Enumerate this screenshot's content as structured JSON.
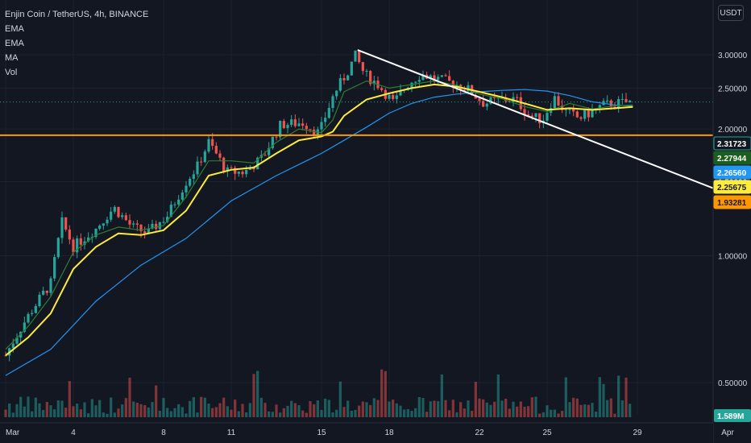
{
  "header": {
    "symbol": "Enjin Coin / TetherUS, 4h, BINANCE",
    "indicators": [
      "EMA",
      "EMA",
      "MA",
      "Vol"
    ]
  },
  "currency_label": "USDT",
  "chart_data": {
    "type": "candlestick",
    "title": "Enjin Coin / TetherUS, 4h, BINANCE",
    "y_axis": {
      "scale": "log",
      "ticks": [
        3.0,
        2.5,
        2.0,
        1.5,
        1.0,
        0.5
      ],
      "tick_labels": [
        "3.00000",
        "2.50000",
        "2.00000",
        "1.50000",
        "1.00000",
        "0.50000"
      ]
    },
    "x_axis": {
      "ticks": [
        "Mar",
        "4",
        "8",
        "11",
        "15",
        "18",
        "22",
        "25",
        "29",
        "Apr"
      ]
    },
    "price_labels": [
      {
        "value": 2.31723,
        "text": "2.31723",
        "bg": "#131722",
        "border": "#26a69a",
        "fg": "#ffffff"
      },
      {
        "value": 2.27944,
        "text": "2.27944",
        "bg": "#1b5e20",
        "border": "#1b5e20",
        "fg": "#ffffff"
      },
      {
        "value": 2.2656,
        "text": "2.26560",
        "bg": "#2196f3",
        "border": "#2196f3",
        "fg": "#ffffff"
      },
      {
        "value": 2.25675,
        "text": "2.25675",
        "bg": "#ffeb3b",
        "border": "#ffeb3b",
        "fg": "#131722"
      },
      {
        "value": 1.93281,
        "text": "1.93281",
        "bg": "#ff9800",
        "border": "#ff9800",
        "fg": "#131722"
      }
    ],
    "volume_label": "1.589M",
    "horizontal_line": {
      "value": 1.93281,
      "color": "#ff9800"
    },
    "trendline": {
      "from": {
        "day": 15.6,
        "price": 3.08
      },
      "to": {
        "day": 31.6,
        "price": 1.43
      },
      "color": "#ffffff"
    },
    "price_path": [
      [
        0.0,
        0.58
      ],
      [
        1.0,
        0.72
      ],
      [
        2.0,
        0.86
      ],
      [
        2.5,
        1.2
      ],
      [
        3.0,
        1.05
      ],
      [
        4.0,
        1.16
      ],
      [
        4.8,
        1.3
      ],
      [
        5.6,
        1.17
      ],
      [
        6.3,
        1.13
      ],
      [
        7.2,
        1.25
      ],
      [
        8.0,
        1.5
      ],
      [
        8.5,
        1.63
      ],
      [
        9.0,
        1.86
      ],
      [
        9.8,
        1.58
      ],
      [
        10.6,
        1.58
      ],
      [
        11.4,
        1.71
      ],
      [
        12.2,
        2.05
      ],
      [
        13.2,
        2.07
      ],
      [
        13.9,
        1.95
      ],
      [
        14.6,
        2.45
      ],
      [
        15.1,
        2.7
      ],
      [
        15.5,
        2.98
      ],
      [
        15.9,
        2.7
      ],
      [
        16.5,
        2.55
      ],
      [
        17.2,
        2.3
      ],
      [
        17.8,
        2.55
      ],
      [
        18.4,
        2.7
      ],
      [
        19.2,
        2.62
      ],
      [
        20.0,
        2.55
      ],
      [
        20.5,
        2.48
      ],
      [
        21.2,
        2.3
      ],
      [
        22.0,
        2.35
      ],
      [
        22.6,
        2.35
      ],
      [
        23.2,
        2.15
      ],
      [
        23.8,
        2.1
      ],
      [
        24.3,
        2.38
      ],
      [
        24.8,
        2.2
      ],
      [
        25.4,
        2.12
      ],
      [
        26.0,
        2.2
      ],
      [
        26.5,
        2.28
      ],
      [
        27.0,
        2.3
      ],
      [
        27.8,
        2.31723
      ]
    ],
    "ema_fast": [
      [
        0.0,
        0.6
      ],
      [
        1.0,
        0.68
      ],
      [
        2.0,
        0.8
      ],
      [
        3.0,
        1.02
      ],
      [
        4.0,
        1.12
      ],
      [
        5.0,
        1.17
      ],
      [
        6.0,
        1.15
      ],
      [
        7.0,
        1.18
      ],
      [
        8.0,
        1.38
      ],
      [
        9.0,
        1.68
      ],
      [
        10.0,
        1.68
      ],
      [
        11.0,
        1.66
      ],
      [
        12.0,
        1.86
      ],
      [
        13.0,
        2.0
      ],
      [
        14.0,
        1.96
      ],
      [
        14.5,
        2.1
      ],
      [
        15.0,
        2.45
      ],
      [
        16.0,
        2.6
      ],
      [
        17.0,
        2.5
      ],
      [
        18.0,
        2.55
      ],
      [
        19.0,
        2.6
      ],
      [
        20.0,
        2.54
      ],
      [
        21.0,
        2.42
      ],
      [
        22.0,
        2.36
      ],
      [
        23.0,
        2.26
      ],
      [
        24.0,
        2.2
      ],
      [
        25.0,
        2.3
      ],
      [
        26.0,
        2.23
      ],
      [
        27.0,
        2.27
      ],
      [
        27.8,
        2.27944
      ]
    ],
    "ema_slow": [
      [
        0.0,
        0.58
      ],
      [
        1.0,
        0.64
      ],
      [
        2.0,
        0.73
      ],
      [
        3.0,
        0.93
      ],
      [
        4.0,
        1.05
      ],
      [
        5.0,
        1.13
      ],
      [
        6.0,
        1.12
      ],
      [
        7.0,
        1.15
      ],
      [
        8.0,
        1.28
      ],
      [
        9.0,
        1.55
      ],
      [
        10.0,
        1.6
      ],
      [
        11.0,
        1.62
      ],
      [
        12.0,
        1.75
      ],
      [
        13.0,
        1.88
      ],
      [
        14.0,
        1.92
      ],
      [
        14.5,
        1.97
      ],
      [
        15.0,
        2.15
      ],
      [
        16.0,
        2.35
      ],
      [
        17.0,
        2.43
      ],
      [
        18.0,
        2.5
      ],
      [
        19.0,
        2.55
      ],
      [
        20.0,
        2.52
      ],
      [
        21.0,
        2.45
      ],
      [
        22.0,
        2.38
      ],
      [
        23.0,
        2.3
      ],
      [
        24.0,
        2.22
      ],
      [
        25.0,
        2.24
      ],
      [
        26.0,
        2.22
      ],
      [
        27.0,
        2.24
      ],
      [
        27.8,
        2.25675
      ]
    ],
    "ma": [
      [
        0.0,
        0.52
      ],
      [
        2.0,
        0.6
      ],
      [
        4.0,
        0.78
      ],
      [
        6.0,
        0.95
      ],
      [
        8.0,
        1.1
      ],
      [
        10.0,
        1.35
      ],
      [
        12.0,
        1.55
      ],
      [
        14.0,
        1.75
      ],
      [
        15.0,
        1.88
      ],
      [
        16.0,
        2.02
      ],
      [
        17.0,
        2.18
      ],
      [
        18.0,
        2.3
      ],
      [
        19.0,
        2.38
      ],
      [
        20.0,
        2.42
      ],
      [
        21.0,
        2.45
      ],
      [
        22.0,
        2.47
      ],
      [
        23.0,
        2.48
      ],
      [
        24.0,
        2.46
      ],
      [
        25.0,
        2.4
      ],
      [
        26.0,
        2.32
      ],
      [
        27.0,
        2.28
      ],
      [
        27.8,
        2.2656
      ]
    ]
  },
  "colors": {
    "background": "#131722",
    "grid": "#1e222d",
    "up": "#26a69a",
    "down": "#ef5350",
    "ema_fast": "#2e7d32",
    "ema_slow": "#ffeb3b",
    "ma": "#2196f3",
    "text": "#d1d4dc"
  }
}
